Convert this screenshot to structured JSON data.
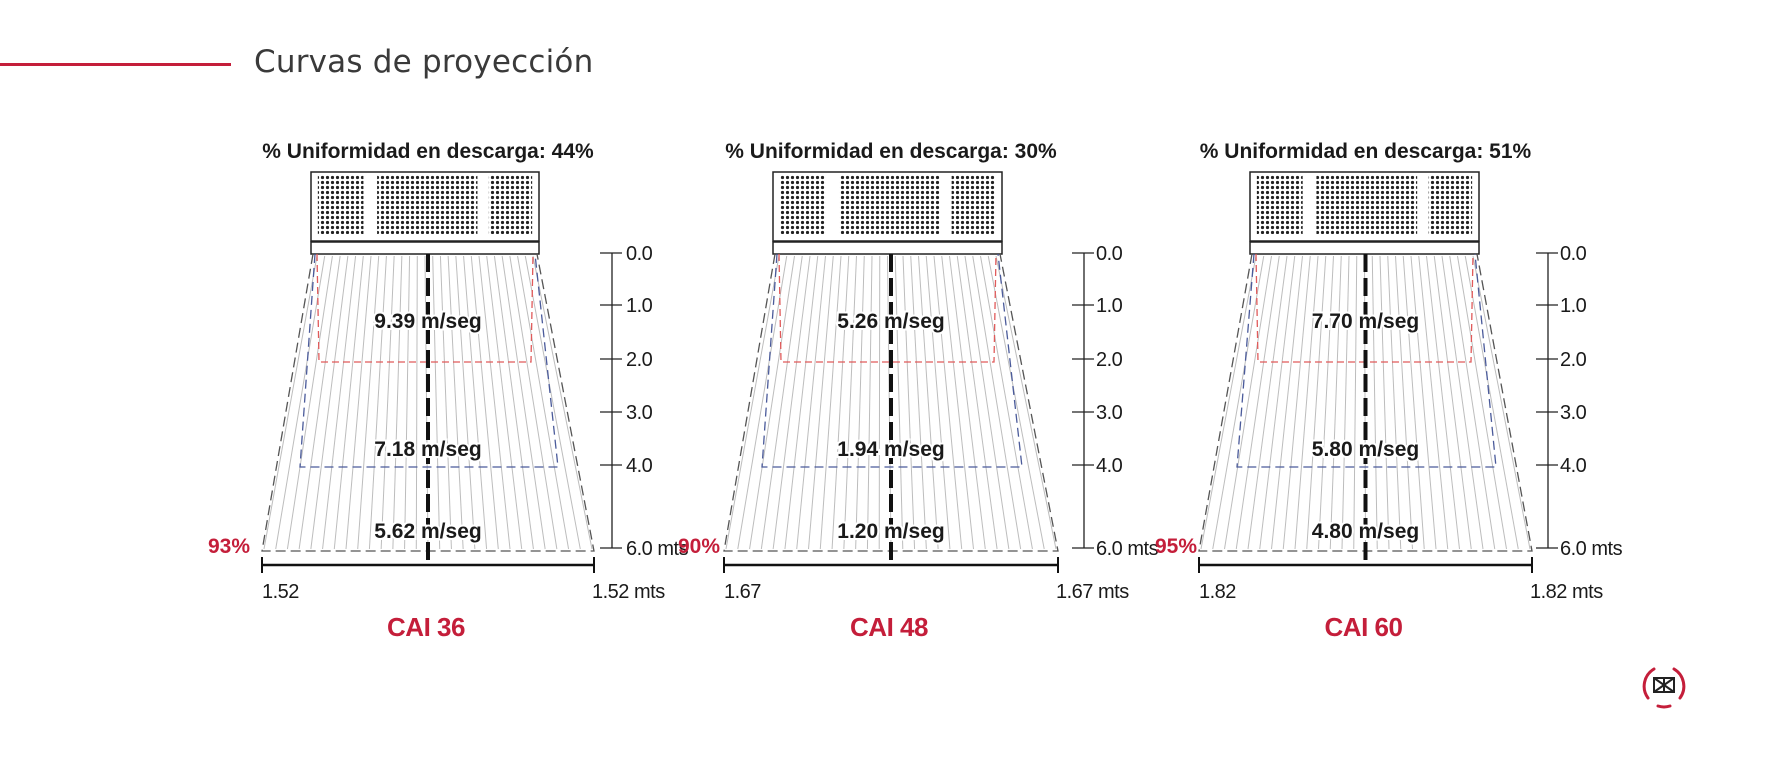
{
  "page": {
    "title": "Curvas de proyección",
    "accent_color": "#c41e3a"
  },
  "units": {
    "height": "mts",
    "velocity": "m/seg"
  },
  "height_ticks": [
    "0.0",
    "1.0",
    "2.0",
    "3.0",
    "4.0",
    "6.0"
  ],
  "models": [
    {
      "name": "CAI 36",
      "uniformity_text": "% Uniformidad en descarga: 44%",
      "coverage_text": "93%",
      "width_left_label": "1.52",
      "width_right_label": "1.52 mts",
      "velocity_labels": [
        "9.39 m/seg",
        "7.18 m/seg",
        "5.62 m/seg"
      ]
    },
    {
      "name": "CAI 48",
      "uniformity_text": "% Uniformidad en descarga: 30%",
      "coverage_text": "90%",
      "width_left_label": "1.67",
      "width_right_label": "1.67 mts",
      "velocity_labels": [
        "5.26 m/seg",
        "1.94 m/seg",
        "1.20 m/seg"
      ]
    },
    {
      "name": "CAI 60",
      "uniformity_text": "% Uniformidad en descarga: 51%",
      "coverage_text": "95%",
      "width_left_label": "1.82",
      "width_right_label": "1.82 mts",
      "velocity_labels": [
        "7.70 m/seg",
        "5.80 m/seg",
        "4.80 m/seg"
      ]
    }
  ],
  "colors": {
    "accent": "#c41e3a",
    "red_zone": "#e05a5a",
    "blue_zone": "#4a5a9a",
    "flow_lines": "#bdbdbd",
    "text": "#1a1a1a"
  },
  "icons": {
    "logo": "brand-logo-icon"
  }
}
